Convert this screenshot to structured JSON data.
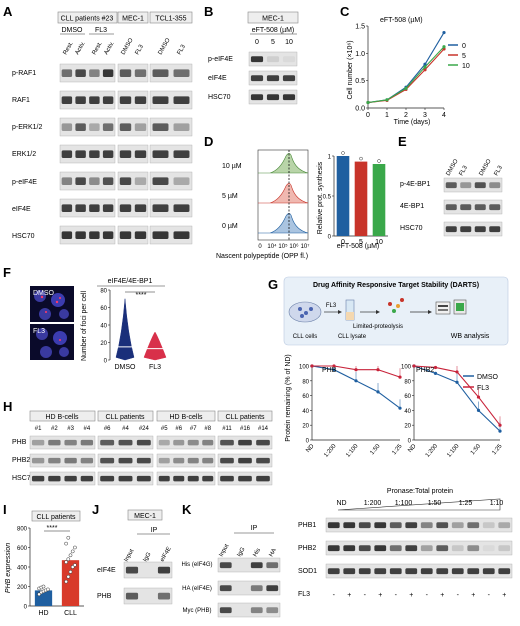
{
  "panels": {
    "A": {
      "letter": "A",
      "groups": [
        "CLL patients #23",
        "MEC-1",
        "TCL1-355"
      ],
      "subgroups": [
        "DMSO",
        "FL3"
      ],
      "lanes": [
        "Rest.",
        "Activ.",
        "Rest.",
        "Activ.",
        "DMSO",
        "FL3",
        "DMSO",
        "FL3"
      ],
      "rows": [
        "p-RAF1",
        "RAF1",
        "p-ERK1/2",
        "ERK1/2",
        "p-eIF4E",
        "eIF4E",
        "HSC70"
      ]
    },
    "B": {
      "letter": "B",
      "cell_line": "MEC-1",
      "drug": "eFT-508 (µM)",
      "doses": [
        "0",
        "5",
        "10"
      ],
      "rows": [
        "p-eIF4E",
        "eIF4E",
        "HSC70"
      ]
    },
    "C": {
      "letter": "C",
      "inset": "eFT-508 (µM)",
      "xlabel": "Time (days)",
      "ylabel": "Cell number (×10⁶)",
      "legend": [
        {
          "label": "0",
          "color": "#1f5fa0"
        },
        {
          "label": "5",
          "color": "#c8342a"
        },
        {
          "label": "10",
          "color": "#3aa84a"
        }
      ]
    },
    "D": {
      "letter": "D",
      "flow_labels": [
        "10 µM",
        "5 µM",
        "0 µM"
      ],
      "flow_xlabel": "Nascent polypeptide (OPP fl.)",
      "flow_ticks": [
        "0",
        "10⁴",
        "10⁵",
        "10⁶",
        "10⁷"
      ],
      "bar_ylabel": "Relative prot. synthesis",
      "bar_xlabel": "eFT-508 (µM)"
    },
    "E": {
      "letter": "E",
      "lanes": [
        "DMSO",
        "FL3",
        "DMSO",
        "FL3"
      ],
      "rows": [
        "p-4E-BP1",
        "4E-BP1",
        "HSC70"
      ]
    },
    "F": {
      "letter": "F",
      "images": [
        "DMSO",
        "FL3"
      ],
      "title": "eIF4E/4E-BP1",
      "ylabel": "Number of foci per cell",
      "sig": "****"
    },
    "G": {
      "letter": "G",
      "title": "Drug Affinity Responsive Target Stability (DARTS)",
      "steps": [
        "CLL cells",
        "FL3",
        "CLL lysate",
        "Limited-proteolysis",
        "WB analysis"
      ],
      "ylabel": "Protein remaining (% of ND)",
      "sublabels": [
        "PHB",
        "PHB2"
      ],
      "legend": [
        {
          "label": "DMSO",
          "color": "#1f5fa0"
        },
        {
          "label": "FL3",
          "color": "#c8233a"
        }
      ]
    },
    "H": {
      "letter": "H",
      "groups": [
        "HD B-cells",
        "CLL patients",
        "HD B-cells",
        "CLL patients"
      ],
      "lanes": [
        "#1",
        "#2",
        "#3",
        "#4",
        "#6",
        "#4",
        "#24",
        "#5",
        "#6",
        "#7",
        "#8",
        "#11",
        "#16",
        "#14"
      ],
      "rows": [
        "PHB",
        "PHB2",
        "HSC70"
      ]
    },
    "I": {
      "letter": "I",
      "title": "CLL patients",
      "ylabel": "PHB expression",
      "sig": "****"
    },
    "J": {
      "letter": "J",
      "cell_line": "MEC-1",
      "ip": "IP",
      "lanes": [
        "Input",
        "IgG",
        "eIF4E"
      ],
      "rows": [
        "eIF4E",
        "PHB"
      ]
    },
    "K": {
      "letter": "K",
      "ip": "IP",
      "lanes": [
        "Input",
        "IgG",
        "His",
        "HA"
      ],
      "rows": [
        "His (eIF4G)",
        "HA (eIF4E)",
        "Myc (PHB)"
      ]
    },
    "L": {
      "header": "Pronase:Total protein",
      "ratios": [
        "ND",
        "1:200",
        "1:100",
        "1:50",
        "1:25",
        "1:10"
      ],
      "rows": [
        "PHB1",
        "PHB2",
        "SOD1"
      ],
      "fl3_label": "FL3",
      "fl3_signs": [
        "-",
        "+",
        "-",
        "+",
        "-",
        "+",
        "-",
        "+",
        "-",
        "+",
        "-",
        "+"
      ]
    }
  },
  "chart_data": [
    {
      "panel": "C",
      "type": "line",
      "x": [
        0,
        1,
        2,
        3,
        4
      ],
      "xlabel": "Time (days)",
      "ylabel": "Cell number (×10⁶)",
      "xlim": [
        0,
        4
      ],
      "ylim": [
        0,
        1.5
      ],
      "x_ticks": [
        0,
        1,
        2,
        3,
        4
      ],
      "y_ticks": [
        0,
        0.5,
        1.0,
        1.5
      ],
      "legend_title": "eFT-508 (µM)",
      "series": [
        {
          "name": "0",
          "values": [
            0.1,
            0.15,
            0.38,
            0.8,
            1.38
          ],
          "color": "#1f5fa0"
        },
        {
          "name": "5",
          "values": [
            0.1,
            0.14,
            0.34,
            0.7,
            1.08
          ],
          "color": "#c8342a"
        },
        {
          "name": "10",
          "values": [
            0.1,
            0.15,
            0.36,
            0.75,
            1.12
          ],
          "color": "#3aa84a"
        }
      ]
    },
    {
      "panel": "D",
      "type": "bar",
      "categories": [
        "0",
        "5",
        "10"
      ],
      "values": [
        1.0,
        0.93,
        0.9
      ],
      "colors": [
        "#1f5fa0",
        "#c8342a",
        "#3aa84a"
      ],
      "ylabel": "Relative prot. synthesis",
      "xlabel": "eFT-508 (µM)",
      "ylim": [
        0,
        1.0
      ],
      "y_ticks": [
        0,
        0.5,
        1.0
      ]
    },
    {
      "panel": "F",
      "type": "violin",
      "categories": [
        "DMSO",
        "FL3"
      ],
      "medians": [
        15,
        13
      ],
      "maxima": [
        70,
        32
      ],
      "ylabel": "Number of foci per cell",
      "ylim": [
        0,
        80
      ],
      "y_ticks": [
        0,
        20,
        40,
        60,
        80
      ]
    },
    {
      "panel": "G-PHB",
      "type": "line",
      "categories": [
        "ND",
        "1:200",
        "1:100",
        "1:50",
        "1:25"
      ],
      "ylim": [
        0,
        100
      ],
      "y_ticks": [
        0,
        20,
        40,
        60,
        80,
        100
      ],
      "series": [
        {
          "name": "DMSO",
          "values": [
            100,
            95,
            80,
            65,
            43
          ],
          "color": "#1f5fa0"
        },
        {
          "name": "FL3",
          "values": [
            100,
            100,
            95,
            95,
            85
          ],
          "color": "#c8233a"
        }
      ]
    },
    {
      "panel": "G-PHB2",
      "type": "line",
      "categories": [
        "ND",
        "1:200",
        "1:100",
        "1:50",
        "1:25"
      ],
      "ylim": [
        0,
        100
      ],
      "y_ticks": [
        0,
        20,
        40,
        60,
        80,
        100
      ],
      "series": [
        {
          "name": "DMSO",
          "values": [
            100,
            90,
            78,
            40,
            12
          ],
          "color": "#1f5fa0"
        },
        {
          "name": "FL3",
          "values": [
            100,
            98,
            92,
            58,
            20
          ],
          "color": "#c8233a"
        }
      ]
    },
    {
      "panel": "I",
      "type": "bar",
      "categories": [
        "HD",
        "CLL"
      ],
      "values": [
        160,
        470
      ],
      "colors": [
        "#1f5fa0",
        "#d83a2a"
      ],
      "ylabel": "PHB expression",
      "ylim": [
        0,
        800
      ],
      "y_ticks": [
        0,
        200,
        400,
        600,
        800
      ],
      "points": {
        "HD": [
          120,
          140,
          150,
          160,
          170,
          180,
          190,
          200
        ],
        "CLL": [
          250,
          300,
          350,
          400,
          420,
          450,
          480,
          520,
          560,
          600,
          640,
          700
        ]
      }
    }
  ]
}
